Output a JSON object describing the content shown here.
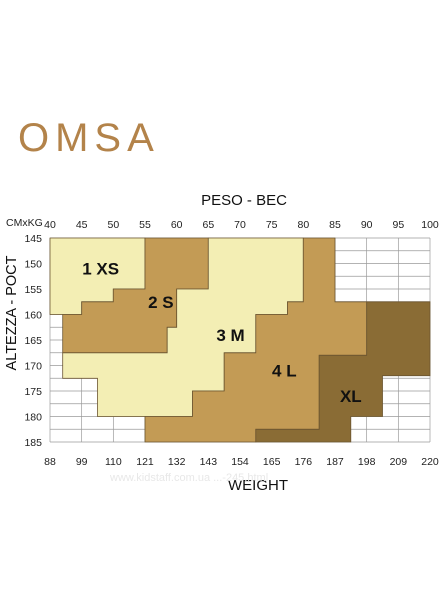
{
  "brand": {
    "name": "OMSA",
    "color": "#b3834a"
  },
  "watermark": "www.kidstaff.com.ua  ...-245.html",
  "chart_data": {
    "type": "heatmap",
    "title": "PESO - BEC",
    "corner_label": "CMxKG",
    "xlabel": "WEIGHT",
    "ylabel": "ALTEZZA - POCT",
    "x_kg_ticks": [
      40,
      45,
      50,
      55,
      60,
      65,
      70,
      75,
      80,
      85,
      90,
      95,
      100
    ],
    "x_lb_ticks": [
      88,
      99,
      110,
      121,
      132,
      143,
      154,
      165,
      176,
      187,
      198,
      209,
      220
    ],
    "y_ticks": [
      145,
      150,
      155,
      160,
      165,
      170,
      175,
      180,
      185
    ],
    "xlim": [
      40,
      100
    ],
    "ylim": [
      145,
      185
    ],
    "grid": true,
    "sizes": [
      {
        "label": "1 XS",
        "color": "#f3eeb4",
        "label_at": [
          48,
          151
        ],
        "region": [
          [
            40,
            145
          ],
          [
            55,
            145
          ],
          [
            55,
            155
          ],
          [
            50,
            155
          ],
          [
            50,
            157.5
          ],
          [
            45,
            157.5
          ],
          [
            45,
            160
          ],
          [
            40,
            160
          ]
        ]
      },
      {
        "label": "2 S",
        "color": "#c39b55",
        "label_at": [
          57.5,
          157.5
        ],
        "region": [
          [
            55,
            145
          ],
          [
            65,
            145
          ],
          [
            65,
            155
          ],
          [
            60,
            155
          ],
          [
            60,
            162.5
          ],
          [
            58.5,
            162.5
          ],
          [
            58.5,
            167.5
          ],
          [
            42,
            167.5
          ],
          [
            42,
            160
          ],
          [
            45,
            160
          ],
          [
            45,
            157.5
          ],
          [
            50,
            157.5
          ],
          [
            50,
            155
          ],
          [
            55,
            155
          ]
        ]
      },
      {
        "label": "3 M",
        "color": "#f3eeb4",
        "label_at": [
          68.5,
          164
        ],
        "region": [
          [
            65,
            145
          ],
          [
            80,
            145
          ],
          [
            80,
            157.5
          ],
          [
            77.5,
            157.5
          ],
          [
            77.5,
            160
          ],
          [
            72.5,
            160
          ],
          [
            72.5,
            167.5
          ],
          [
            67.5,
            167.5
          ],
          [
            67.5,
            175
          ],
          [
            62.5,
            175
          ],
          [
            62.5,
            180
          ],
          [
            47.5,
            180
          ],
          [
            47.5,
            172.5
          ],
          [
            42,
            172.5
          ],
          [
            42,
            167.5
          ],
          [
            58.5,
            167.5
          ],
          [
            58.5,
            162.5
          ],
          [
            60,
            162.5
          ],
          [
            60,
            155
          ],
          [
            65,
            155
          ]
        ]
      },
      {
        "label": "4 L",
        "color": "#c39b55",
        "label_at": [
          77,
          171
        ],
        "region": [
          [
            80,
            145
          ],
          [
            85,
            145
          ],
          [
            85,
            157.5
          ],
          [
            90,
            157.5
          ],
          [
            90,
            168
          ],
          [
            82.5,
            168
          ],
          [
            82.5,
            182.5
          ],
          [
            72.5,
            182.5
          ],
          [
            72.5,
            185
          ],
          [
            55,
            185
          ],
          [
            55,
            180
          ],
          [
            62.5,
            180
          ],
          [
            62.5,
            175
          ],
          [
            67.5,
            175
          ],
          [
            67.5,
            167.5
          ],
          [
            72.5,
            167.5
          ],
          [
            72.5,
            160
          ],
          [
            77.5,
            160
          ],
          [
            77.5,
            157.5
          ],
          [
            80,
            157.5
          ]
        ]
      },
      {
        "label": "XL",
        "color": "#8a6c35",
        "label_at": [
          87.5,
          176
        ],
        "region": [
          [
            90,
            157.5
          ],
          [
            100,
            157.5
          ],
          [
            100,
            172
          ],
          [
            92.5,
            172
          ],
          [
            92.5,
            180
          ],
          [
            87.5,
            180
          ],
          [
            87.5,
            185
          ],
          [
            72.5,
            185
          ],
          [
            72.5,
            182.5
          ],
          [
            82.5,
            182.5
          ],
          [
            82.5,
            168
          ],
          [
            90,
            168
          ]
        ]
      }
    ]
  }
}
